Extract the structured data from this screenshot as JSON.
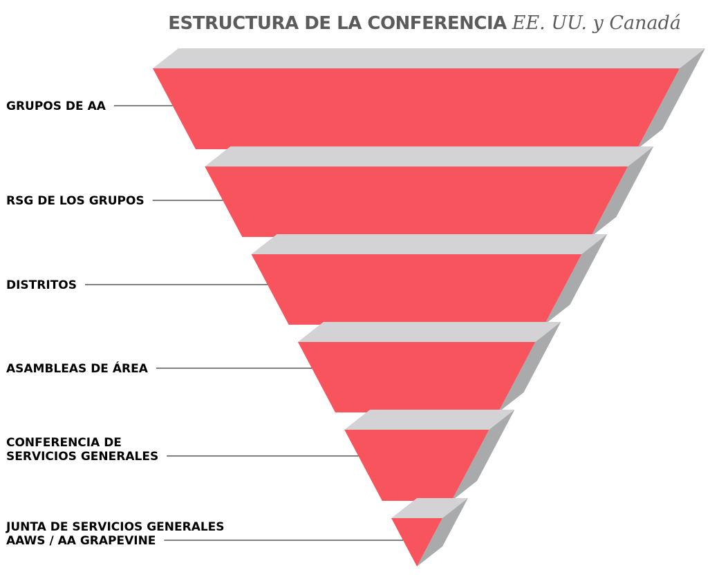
{
  "header": {
    "title": "ESTRUCTURA DE LA CONFERENCIA",
    "subtitle": "EE. UU. y Canadá"
  },
  "tiers": [
    {
      "label": [
        "GRUPOS DE AA"
      ]
    },
    {
      "label": [
        "RSG DE LOS GRUPOS"
      ]
    },
    {
      "label": [
        "DISTRITOS"
      ]
    },
    {
      "label": [
        "ASAMBLEAS DE ÁREA"
      ]
    },
    {
      "label": [
        "CONFERENCIA DE",
        "SERVICIOS GENERALES"
      ]
    },
    {
      "label": [
        "JUNTA DE SERVICIOS GENERALES",
        "AAWS / AA GRAPEVINE"
      ]
    }
  ]
}
